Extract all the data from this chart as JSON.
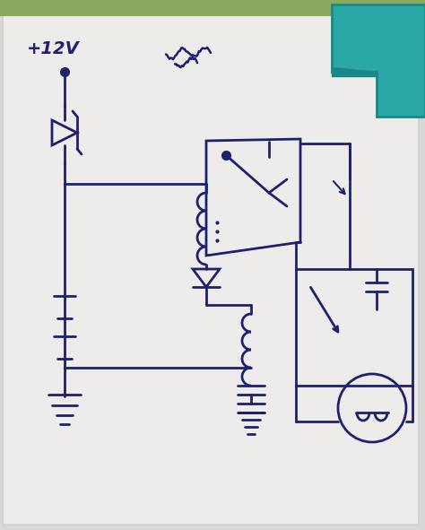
{
  "bg_color": "#d8d8d5",
  "paper_color": "#e8e8e6",
  "ink": "#1e2070",
  "ink_light": "#3040a0",
  "fig_width": 4.74,
  "fig_height": 5.91,
  "dpi": 100,
  "teal_color": "#2aa8a8",
  "teal_dark": "#1a8888",
  "teal_ridge": "#188888"
}
